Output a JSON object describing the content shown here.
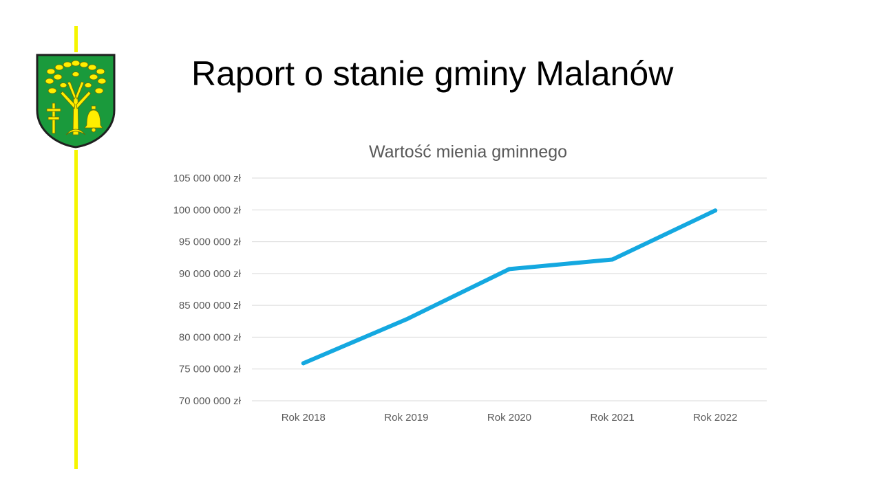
{
  "slide": {
    "title": "Raport o stanie gminy Malanów",
    "colors": {
      "accent_line": "#f5f500",
      "crest_green": "#1a9a3c",
      "crest_yellow": "#ffee00"
    },
    "crest_icon": "coat-of-arms-tree-icon"
  },
  "chart_data": {
    "type": "line",
    "title": "Wartość mienia gminnego",
    "categories": [
      "Rok 2018",
      "Rok 2019",
      "Rok 2020",
      "Rok 2021",
      "Rok 2022"
    ],
    "series": [
      {
        "values": [
          75900000,
          82800000,
          90700000,
          92200000,
          99900000
        ],
        "color": "#14a8e0"
      }
    ],
    "ylim": [
      70000000,
      105000000
    ],
    "yticks": [
      {
        "value": 70000000,
        "label": "70 000 000 zł"
      },
      {
        "value": 75000000,
        "label": "75 000 000 zł"
      },
      {
        "value": 80000000,
        "label": "80 000 000 zł"
      },
      {
        "value": 85000000,
        "label": "85 000 000 zł"
      },
      {
        "value": 90000000,
        "label": "90 000 000 zł"
      },
      {
        "value": 95000000,
        "label": "95 000 000 zł"
      },
      {
        "value": 100000000,
        "label": "100 000 000 zł"
      },
      {
        "value": 105000000,
        "label": "105 000 000 zł"
      }
    ],
    "grid": true,
    "legend": "none"
  }
}
